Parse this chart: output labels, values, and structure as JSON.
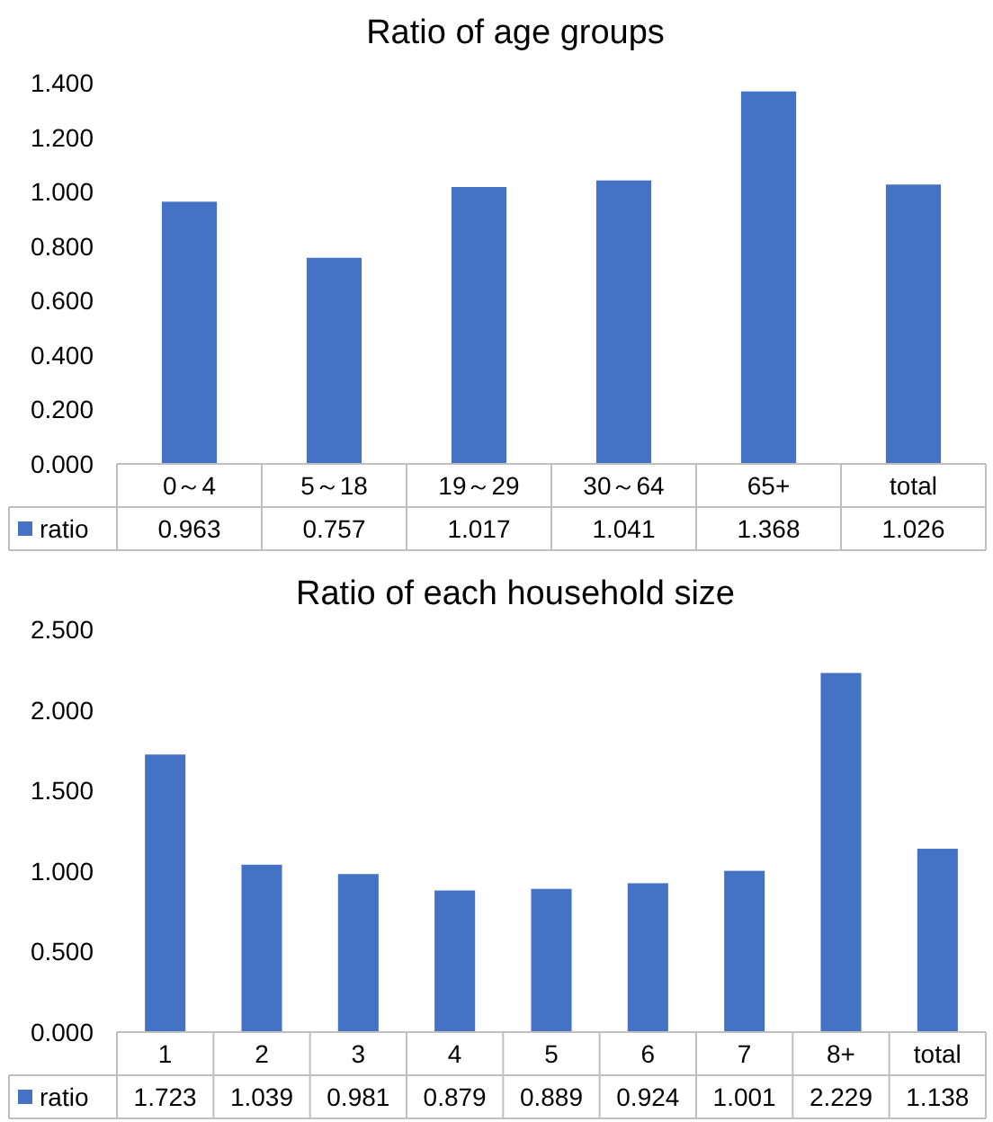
{
  "chart_data": [
    {
      "type": "bar",
      "title": "Ratio of age groups",
      "categories": [
        "0～4",
        "5～18",
        "19～29",
        "30～64",
        "65+",
        "total"
      ],
      "series": [
        {
          "name": "ratio",
          "color": "#4472c4",
          "values": [
            0.963,
            0.757,
            1.017,
            1.041,
            1.368,
            1.026
          ]
        }
      ],
      "ylim": [
        0,
        1.4
      ],
      "yticks": [
        {
          "value": 0,
          "label": "0.000"
        },
        {
          "value": 0.2,
          "label": "0.200"
        },
        {
          "value": 0.4,
          "label": "0.400"
        },
        {
          "value": 0.6,
          "label": "0.600"
        },
        {
          "value": 0.8,
          "label": "0.800"
        },
        {
          "value": 1.0,
          "label": "1.000"
        },
        {
          "value": 1.2,
          "label": "1.200"
        },
        {
          "value": 1.4,
          "label": "1.400"
        }
      ],
      "data_labels": true,
      "legend": "bottom"
    },
    {
      "type": "bar",
      "title": "Ratio of each household size",
      "categories": [
        "1",
        "2",
        "3",
        "4",
        "5",
        "6",
        "7",
        "8+",
        "total"
      ],
      "series": [
        {
          "name": "ratio",
          "color": "#4472c4",
          "values": [
            1.723,
            1.039,
            0.981,
            0.879,
            0.889,
            0.924,
            1.001,
            2.229,
            1.138
          ]
        }
      ],
      "ylim": [
        0,
        2.5
      ],
      "yticks": [
        {
          "value": 0,
          "label": "0.000"
        },
        {
          "value": 0.5,
          "label": "0.500"
        },
        {
          "value": 1.0,
          "label": "1.000"
        },
        {
          "value": 1.5,
          "label": "1.500"
        },
        {
          "value": 2.0,
          "label": "2.000"
        },
        {
          "value": 2.5,
          "label": "2.500"
        }
      ],
      "data_labels": true,
      "legend": "bottom"
    }
  ]
}
